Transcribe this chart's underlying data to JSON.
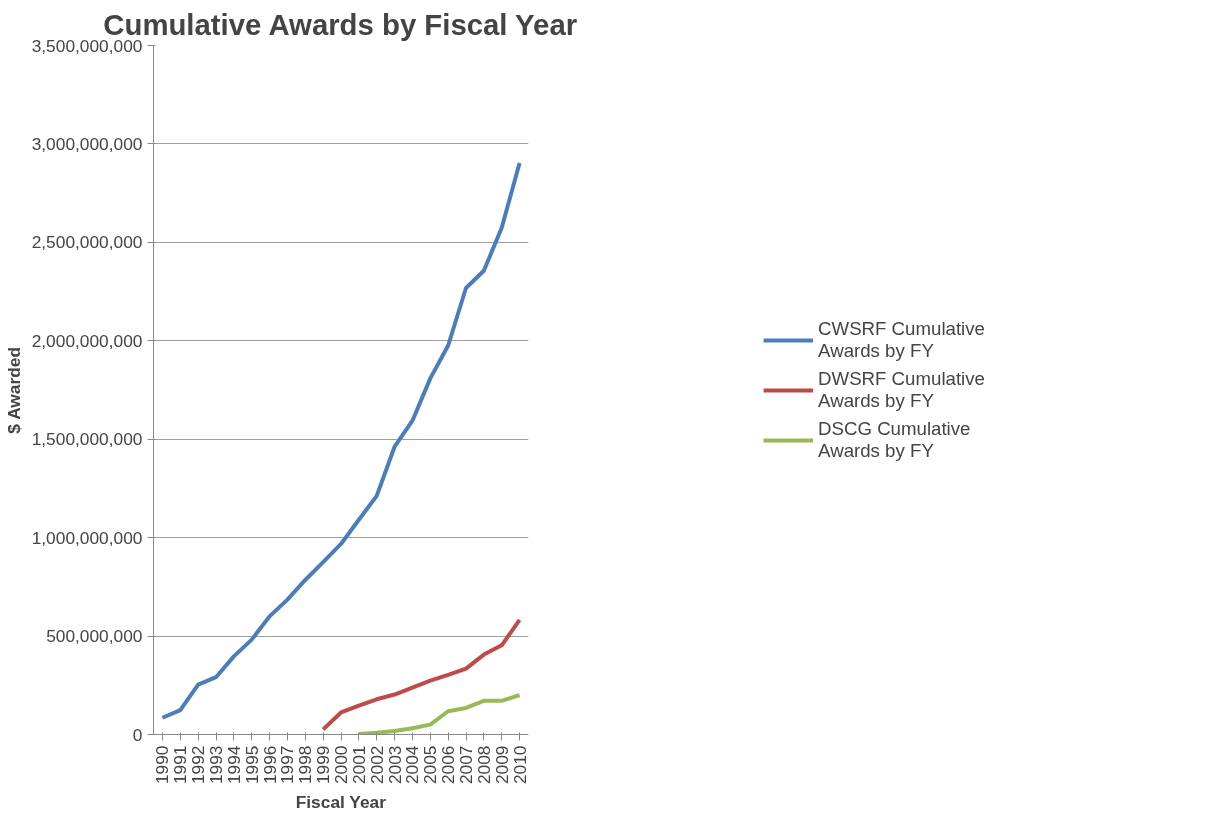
{
  "chart_data": {
    "type": "line",
    "title": "Cumulative Awards by Fiscal Year",
    "xlabel": "Fiscal Year",
    "ylabel": "$ Awarded",
    "categories": [
      "1990",
      "1991",
      "1992",
      "1993",
      "1994",
      "1995",
      "1996",
      "1997",
      "1998",
      "1999",
      "2000",
      "2001",
      "2002",
      "2003",
      "2004",
      "2005",
      "2006",
      "2007",
      "2008",
      "2009",
      "2010"
    ],
    "series": [
      {
        "name": "CWSRF Cumulative Awards by FY",
        "color": "#4a7ebb",
        "values": [
          85000000,
          124000000,
          253000000,
          291000000,
          397000000,
          482000000,
          600000000,
          685000000,
          785000000,
          876000000,
          968000000,
          1091000000,
          1212000000,
          1462000000,
          1594000000,
          1809000000,
          1976000000,
          2268000000,
          2356000000,
          2574000000,
          2903000000
        ]
      },
      {
        "name": "DWSRF Cumulative Awards by FY",
        "color": "#be4b48",
        "values": [
          null,
          null,
          null,
          null,
          null,
          null,
          null,
          null,
          null,
          26000000,
          112000000,
          147000000,
          179000000,
          203000000,
          238000000,
          274000000,
          303000000,
          335000000,
          406000000,
          453000000,
          582000000
        ]
      },
      {
        "name": "DSCG Cumulative Awards by FY",
        "color": "#98b954",
        "values": [
          null,
          null,
          null,
          null,
          null,
          null,
          null,
          null,
          null,
          null,
          null,
          3000000,
          9000000,
          18000000,
          32000000,
          50000000,
          118000000,
          135000000,
          171000000,
          171000000,
          200000000
        ]
      }
    ],
    "ylim": [
      0,
      3500000000
    ],
    "yticks": [
      {
        "value": 0,
        "label": "0"
      },
      {
        "value": 500000000,
        "label": "500,000,000"
      },
      {
        "value": 1000000000,
        "label": "1,000,000,000"
      },
      {
        "value": 1500000000,
        "label": "1,500,000,000"
      },
      {
        "value": 2000000000,
        "label": "2,000,000,000"
      },
      {
        "value": 2500000000,
        "label": "2,500,000,000"
      },
      {
        "value": 3000000000,
        "label": "3,000,000,000"
      },
      {
        "value": 3500000000,
        "label": "3,500,000,000"
      }
    ],
    "grid": "y",
    "legend": "right",
    "line_style": "solid",
    "marker": "none"
  }
}
